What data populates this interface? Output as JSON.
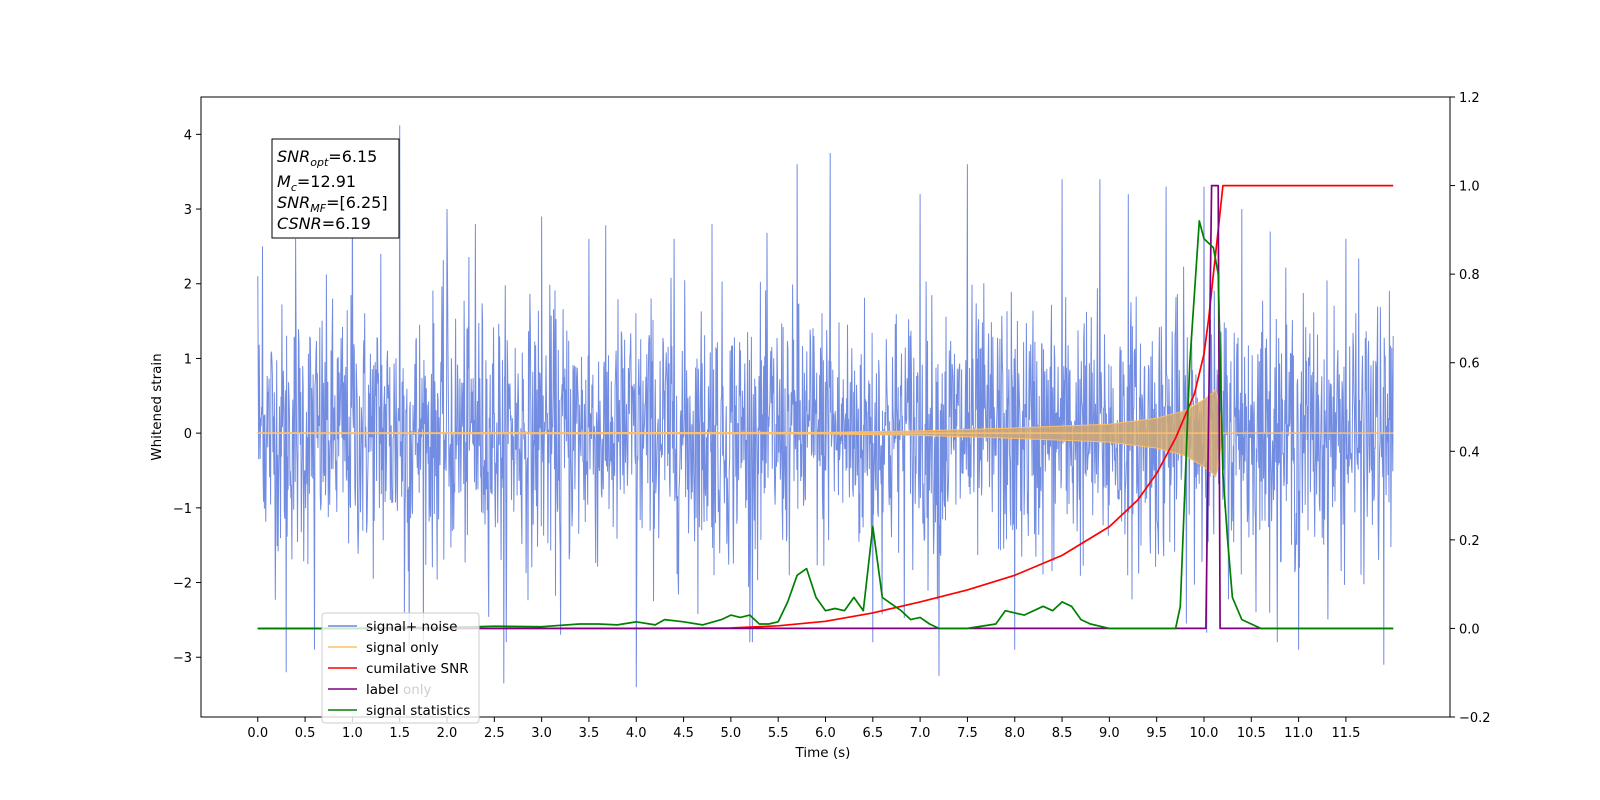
{
  "chart_data": {
    "type": "line",
    "xlabel": "Time (s)",
    "ylabel": "Whitened strain",
    "xlim": [
      -0.6,
      12.6
    ],
    "ylim_left": [
      -3.8,
      4.5
    ],
    "ylim_right": [
      -0.2,
      1.2
    ],
    "x_ticks": [
      "0.0",
      "0.5",
      "1.0",
      "1.5",
      "2.0",
      "2.5",
      "3.0",
      "3.5",
      "4.0",
      "4.5",
      "5.0",
      "5.5",
      "6.0",
      "6.5",
      "7.0",
      "7.5",
      "8.0",
      "8.5",
      "9.0",
      "9.5",
      "10.0",
      "10.5",
      "11.0",
      "11.5"
    ],
    "y_ticks_left": [
      "4",
      "3",
      "2",
      "1",
      "0",
      "−1",
      "−2",
      "−3"
    ],
    "y_ticks_right": [
      "1.2",
      "1.0",
      "0.8",
      "0.6",
      "0.4",
      "0.2",
      "0.0",
      "−0.2"
    ],
    "annotation": {
      "snr_opt": {
        "base": "SNR",
        "sub": "opt",
        "value": "=6.15"
      },
      "mc": {
        "base": "M",
        "sub": "c",
        "value": "=12.91"
      },
      "snr_mf": {
        "base": "SNR",
        "sub": "MF",
        "value": "=[6.25]"
      },
      "csnr": {
        "base": "CSNR",
        "sub": "",
        "value": "=6.19"
      }
    },
    "legend": {
      "placement": "lower-left",
      "entries": [
        {
          "label": "signal+ noise",
          "color": "#6a86e0"
        },
        {
          "label": "signal only",
          "color": "#ffbf66"
        },
        {
          "label": "cumilative SNR",
          "color": "#ff0000"
        },
        {
          "label": "label",
          "color": "#800080"
        },
        {
          "label": "signal statistics",
          "color": "#008000"
        }
      ],
      "hidden_behind_label": "label only"
    },
    "series": [
      {
        "name": "signal+ noise",
        "axis": "left",
        "color": "#6a86e0",
        "description_values": {
          "x_start": 0.0,
          "x_end": 12.0,
          "typical_range": [
            -2.2,
            2.3
          ],
          "max": 4.1,
          "min": -3.4
        },
        "x": [
          0.0,
          0.05,
          0.3,
          0.4,
          0.6,
          1.0,
          1.3,
          1.5,
          1.55,
          1.6,
          2.0,
          2.3,
          2.6,
          3.0,
          3.2,
          3.5,
          4.0,
          4.4,
          4.8,
          5.2,
          5.7,
          6.05,
          6.5,
          7.0,
          7.2,
          7.5,
          8.0,
          8.5,
          8.9,
          9.2,
          9.6,
          10.0,
          10.4,
          10.7,
          11.0,
          11.5,
          11.9,
          12.0
        ],
        "y": [
          2.1,
          2.5,
          -3.2,
          2.6,
          -2.9,
          3.3,
          2.4,
          4.12,
          -2.4,
          -2.9,
          3.0,
          2.8,
          -3.35,
          2.9,
          -2.7,
          2.6,
          -3.4,
          2.6,
          2.8,
          -2.8,
          3.6,
          3.75,
          -2.8,
          3.2,
          -3.25,
          3.6,
          -2.9,
          3.4,
          3.4,
          3.2,
          3.3,
          3.3,
          3.0,
          2.7,
          -2.9,
          2.6,
          -3.1,
          1.3
        ]
      },
      {
        "name": "signal only",
        "axis": "left",
        "color": "#ffbf66",
        "x": [
          0.0,
          6.0,
          7.0,
          8.0,
          9.0,
          9.5,
          9.8,
          10.0,
          10.1,
          10.13,
          10.2,
          12.0
        ],
        "amplitude": [
          0.005,
          0.01,
          0.03,
          0.07,
          0.12,
          0.2,
          0.3,
          0.45,
          0.55,
          0.6,
          0.0,
          0.0
        ]
      },
      {
        "name": "cumilative SNR",
        "axis": "right",
        "color": "#ff0000",
        "x": [
          0.0,
          4.0,
          5.0,
          5.5,
          6.0,
          6.5,
          7.0,
          7.5,
          8.0,
          8.5,
          9.0,
          9.3,
          9.5,
          9.7,
          9.9,
          10.0,
          10.05,
          10.1,
          10.15,
          10.2,
          12.0
        ],
        "y": [
          0.0,
          0.0,
          0.001,
          0.006,
          0.016,
          0.035,
          0.06,
          0.087,
          0.12,
          0.165,
          0.23,
          0.29,
          0.35,
          0.43,
          0.53,
          0.62,
          0.7,
          0.8,
          0.9,
          1.0,
          1.0
        ]
      },
      {
        "name": "label",
        "axis": "right",
        "color": "#800080",
        "x": [
          0.0,
          10.0,
          10.02,
          10.08,
          10.15,
          10.17,
          12.0
        ],
        "y": [
          0.0,
          0.0,
          0.0,
          1.0,
          1.0,
          0.0,
          0.0
        ]
      },
      {
        "name": "signal statistics",
        "axis": "right",
        "color": "#008000",
        "x": [
          0.0,
          0.5,
          1.0,
          1.5,
          2.0,
          2.5,
          3.0,
          3.4,
          3.6,
          3.8,
          4.0,
          4.2,
          4.3,
          4.5,
          4.7,
          4.9,
          5.0,
          5.1,
          5.2,
          5.3,
          5.4,
          5.5,
          5.6,
          5.7,
          5.8,
          5.9,
          6.0,
          6.1,
          6.2,
          6.3,
          6.4,
          6.5,
          6.6,
          6.7,
          6.8,
          6.9,
          7.0,
          7.1,
          7.2,
          7.3,
          7.5,
          7.8,
          7.9,
          8.0,
          8.1,
          8.3,
          8.4,
          8.5,
          8.6,
          8.7,
          8.8,
          8.9,
          9.0,
          9.2,
          9.5,
          9.7,
          9.75,
          9.85,
          9.95,
          10.0,
          10.1,
          10.15,
          10.2,
          10.25,
          10.3,
          10.4,
          10.6,
          10.8,
          12.0
        ],
        "y": [
          0.0,
          0.0,
          0.0,
          0.002,
          0.002,
          0.005,
          0.004,
          0.01,
          0.01,
          0.008,
          0.015,
          0.008,
          0.02,
          0.015,
          0.008,
          0.02,
          0.03,
          0.025,
          0.03,
          0.01,
          0.01,
          0.015,
          0.06,
          0.12,
          0.135,
          0.07,
          0.04,
          0.045,
          0.04,
          0.07,
          0.04,
          0.23,
          0.07,
          0.055,
          0.04,
          0.02,
          0.025,
          0.01,
          0.0,
          0.0,
          0.0,
          0.01,
          0.04,
          0.035,
          0.03,
          0.05,
          0.04,
          0.06,
          0.05,
          0.02,
          0.01,
          0.005,
          0.0,
          0.0,
          0.0,
          0.0,
          0.05,
          0.6,
          0.92,
          0.88,
          0.86,
          0.8,
          0.35,
          0.2,
          0.07,
          0.02,
          0.0,
          0.0,
          0.0
        ]
      }
    ]
  }
}
